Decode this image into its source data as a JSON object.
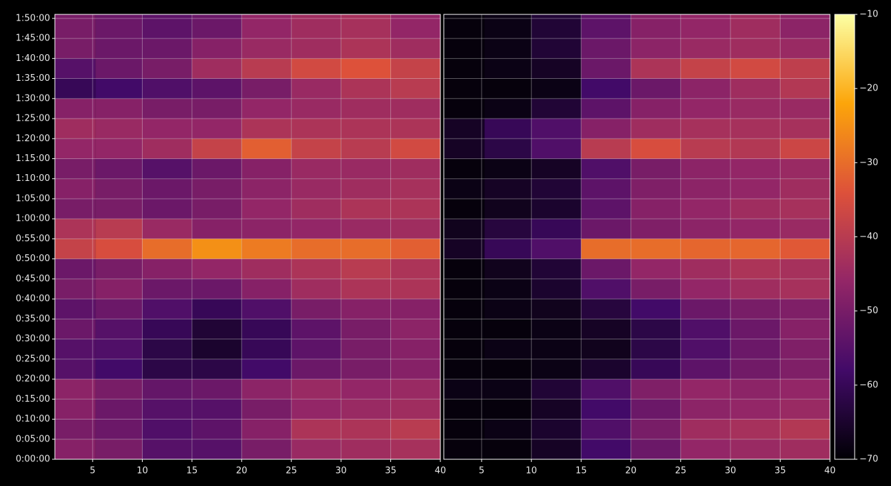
{
  "chart_data": {
    "type": "heatmap",
    "grid": true,
    "ylim": [
      0,
      6660
    ],
    "yticks": [
      {
        "value": 0,
        "label": "0:00:00"
      },
      {
        "value": 300,
        "label": "0:05:00"
      },
      {
        "value": 600,
        "label": "0:10:00"
      },
      {
        "value": 900,
        "label": "0:15:00"
      },
      {
        "value": 1200,
        "label": "0:20:00"
      },
      {
        "value": 1500,
        "label": "0:25:00"
      },
      {
        "value": 1800,
        "label": "0:30:00"
      },
      {
        "value": 2100,
        "label": "0:35:00"
      },
      {
        "value": 2400,
        "label": "0:40:00"
      },
      {
        "value": 2700,
        "label": "0:45:00"
      },
      {
        "value": 3000,
        "label": "0:50:00"
      },
      {
        "value": 3300,
        "label": "0:55:00"
      },
      {
        "value": 3600,
        "label": "1:00:00"
      },
      {
        "value": 3900,
        "label": "1:05:00"
      },
      {
        "value": 4200,
        "label": "1:10:00"
      },
      {
        "value": 4500,
        "label": "1:15:00"
      },
      {
        "value": 4800,
        "label": "1:20:00"
      },
      {
        "value": 5100,
        "label": "1:25:00"
      },
      {
        "value": 5400,
        "label": "1:30:00"
      },
      {
        "value": 5700,
        "label": "1:35:00"
      },
      {
        "value": 6000,
        "label": "1:40:00"
      },
      {
        "value": 6300,
        "label": "1:45:00"
      },
      {
        "value": 6600,
        "label": "1:50:00"
      }
    ],
    "y": [
      150,
      450,
      750,
      1050,
      1350,
      1650,
      1950,
      2250,
      2550,
      2850,
      3150,
      3450,
      3750,
      4050,
      4350,
      4650,
      4950,
      5250,
      5550,
      5850,
      6150,
      6450
    ],
    "colorscale": [
      "#000004",
      "#420a68",
      "#932667",
      "#dd513a",
      "#fca50a",
      "#fcffa4"
    ],
    "clim": [
      -70,
      -10
    ],
    "cticks": [
      {
        "value": -70,
        "label": "−70"
      },
      {
        "value": -60,
        "label": "−60"
      },
      {
        "value": -50,
        "label": "−50"
      },
      {
        "value": -40,
        "label": "−40"
      },
      {
        "value": -30,
        "label": "−30"
      },
      {
        "value": -20,
        "label": "−20"
      },
      {
        "value": -10,
        "label": "−10"
      }
    ],
    "panels": [
      {
        "xlim": [
          1.2,
          40
        ],
        "xticks": [
          5,
          10,
          15,
          20,
          25,
          30,
          35,
          40
        ],
        "x": [
          3.1,
          7.5,
          12.5,
          17.5,
          22.5,
          27.5,
          32.5,
          37.5
        ],
        "values": [
          [
            -48,
            -50,
            -55,
            -55,
            -50,
            -45,
            -44,
            -43
          ],
          [
            -50,
            -52,
            -56,
            -54,
            -48,
            -42,
            -42,
            -40
          ],
          [
            -48,
            -52,
            -55,
            -55,
            -50,
            -46,
            -45,
            -44
          ],
          [
            -47,
            -50,
            -53,
            -52,
            -47,
            -45,
            -46,
            -45
          ],
          [
            -55,
            -58,
            -62,
            -62,
            -58,
            -52,
            -50,
            -48
          ],
          [
            -55,
            -56,
            -62,
            -65,
            -60,
            -54,
            -50,
            -48
          ],
          [
            -52,
            -55,
            -60,
            -64,
            -60,
            -54,
            -50,
            -47
          ],
          [
            -54,
            -52,
            -56,
            -60,
            -56,
            -50,
            -48,
            -48
          ],
          [
            -50,
            -48,
            -52,
            -52,
            -48,
            -44,
            -42,
            -42
          ],
          [
            -52,
            -50,
            -48,
            -46,
            -44,
            -42,
            -40,
            -42
          ],
          [
            -38,
            -35,
            -30,
            -25,
            -28,
            -30,
            -30,
            -32
          ],
          [
            -42,
            -40,
            -45,
            -48,
            -47,
            -46,
            -45,
            -44
          ],
          [
            -50,
            -50,
            -52,
            -50,
            -46,
            -44,
            -42,
            -42
          ],
          [
            -48,
            -50,
            -52,
            -50,
            -47,
            -45,
            -44,
            -43
          ],
          [
            -50,
            -52,
            -55,
            -52,
            -48,
            -45,
            -45,
            -44
          ],
          [
            -46,
            -46,
            -44,
            -38,
            -32,
            -38,
            -40,
            -36
          ],
          [
            -44,
            -45,
            -46,
            -46,
            -42,
            -42,
            -42,
            -42
          ],
          [
            -48,
            -48,
            -50,
            -50,
            -46,
            -45,
            -44,
            -44
          ],
          [
            -60,
            -58,
            -56,
            -54,
            -50,
            -45,
            -42,
            -40
          ],
          [
            -55,
            -52,
            -50,
            -44,
            -40,
            -36,
            -34,
            -38
          ],
          [
            -50,
            -52,
            -52,
            -48,
            -45,
            -44,
            -42,
            -44
          ],
          [
            -50,
            -52,
            -54,
            -52,
            -46,
            -44,
            -43,
            -46
          ]
        ]
      },
      {
        "xlim": [
          1.2,
          40
        ],
        "xticks": [
          5,
          10,
          15,
          20,
          25,
          30,
          35,
          40
        ],
        "x": [
          3.1,
          7.5,
          12.5,
          17.5,
          22.5,
          27.5,
          32.5,
          37.5
        ],
        "values": [
          [
            -69,
            -69,
            -66,
            -58,
            -52,
            -46,
            -45,
            -44
          ],
          [
            -69,
            -68,
            -65,
            -56,
            -50,
            -44,
            -43,
            -41
          ],
          [
            -69,
            -69,
            -66,
            -58,
            -52,
            -47,
            -46,
            -45
          ],
          [
            -68,
            -68,
            -64,
            -56,
            -49,
            -46,
            -47,
            -46
          ],
          [
            -69,
            -69,
            -68,
            -65,
            -60,
            -54,
            -51,
            -49
          ],
          [
            -69,
            -68,
            -68,
            -67,
            -62,
            -56,
            -52,
            -49
          ],
          [
            -69,
            -69,
            -68,
            -66,
            -62,
            -56,
            -52,
            -48
          ],
          [
            -69,
            -68,
            -67,
            -63,
            -58,
            -52,
            -50,
            -49
          ],
          [
            -69,
            -68,
            -65,
            -56,
            -50,
            -46,
            -44,
            -43
          ],
          [
            -69,
            -67,
            -64,
            -52,
            -46,
            -44,
            -42,
            -43
          ],
          [
            -66,
            -60,
            -56,
            -30,
            -30,
            -31,
            -31,
            -33
          ],
          [
            -67,
            -63,
            -60,
            -52,
            -49,
            -47,
            -46,
            -45
          ],
          [
            -69,
            -67,
            -65,
            -54,
            -48,
            -46,
            -44,
            -43
          ],
          [
            -68,
            -66,
            -64,
            -54,
            -49,
            -47,
            -46,
            -44
          ],
          [
            -69,
            -68,
            -66,
            -56,
            -50,
            -47,
            -46,
            -45
          ],
          [
            -66,
            -62,
            -56,
            -40,
            -35,
            -40,
            -41,
            -37
          ],
          [
            -66,
            -60,
            -56,
            -48,
            -44,
            -43,
            -43,
            -43
          ],
          [
            -69,
            -68,
            -64,
            -54,
            -48,
            -46,
            -45,
            -45
          ],
          [
            -69,
            -69,
            -68,
            -58,
            -52,
            -47,
            -44,
            -41
          ],
          [
            -69,
            -68,
            -66,
            -52,
            -42,
            -38,
            -36,
            -39
          ],
          [
            -69,
            -68,
            -64,
            -52,
            -47,
            -45,
            -44,
            -45
          ],
          [
            -69,
            -68,
            -64,
            -54,
            -48,
            -46,
            -44,
            -47
          ]
        ]
      }
    ]
  }
}
